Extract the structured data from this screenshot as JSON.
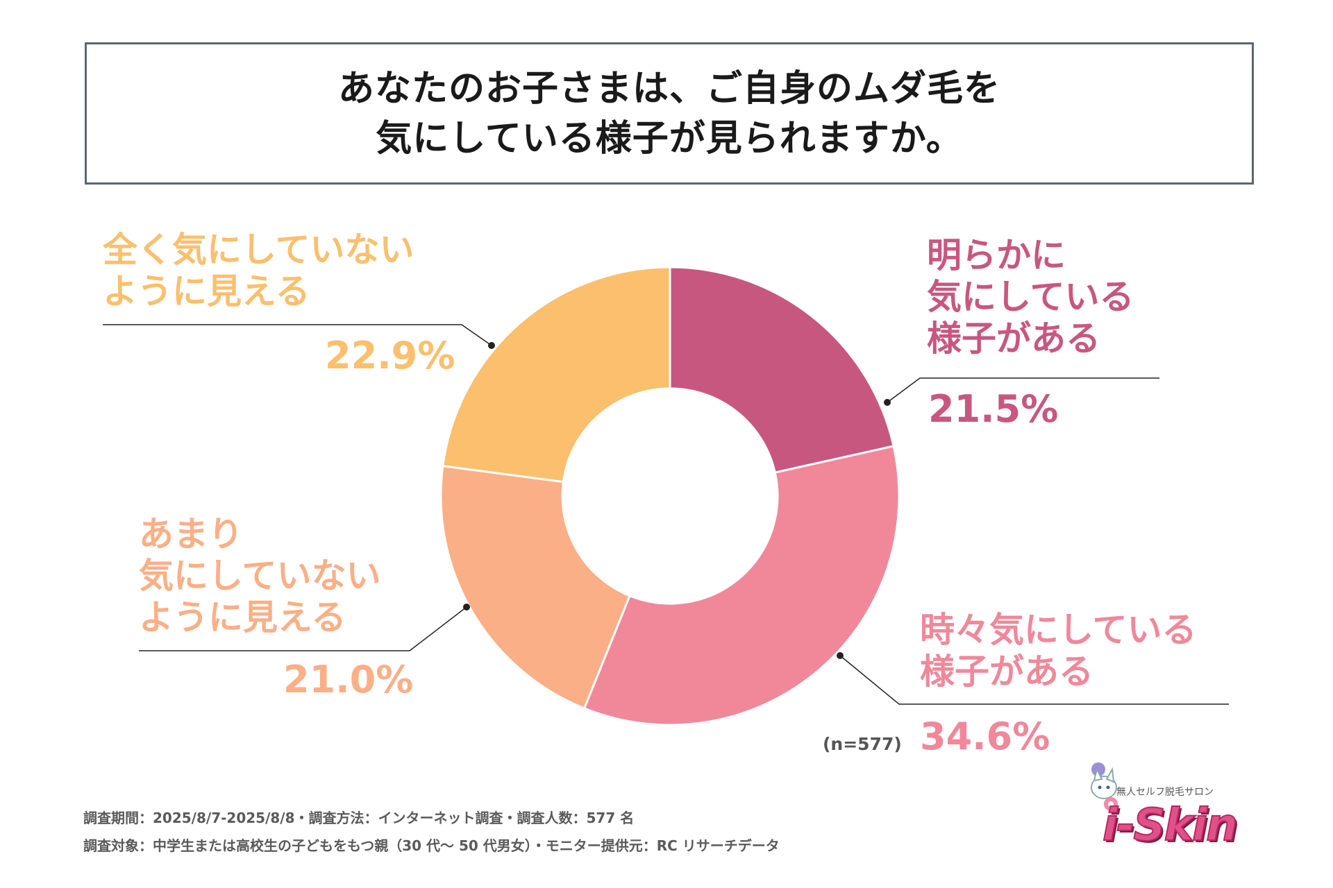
{
  "title": {
    "line1": "あなたのお子さまは、ご自身のムダ毛を",
    "line2": "気にしている様子が見られますか。"
  },
  "chart_data": {
    "type": "pie",
    "variant": "donut",
    "sample_size": "(n=577)",
    "slices": [
      {
        "label_lines": [
          "明らかに",
          "気にしている",
          "様子がある"
        ],
        "value": 21.5,
        "value_label": "21.5%",
        "color": "#c8577f"
      },
      {
        "label_lines": [
          "時々気にしている",
          "様子がある"
        ],
        "value": 34.6,
        "value_label": "34.6%",
        "color": "#f0889a"
      },
      {
        "label_lines": [
          "あまり",
          "気にしていない",
          "ように見える"
        ],
        "value": 21.0,
        "value_label": "21.0%",
        "color": "#fbaf86"
      },
      {
        "label_lines": [
          "全く気にしていない",
          "ように見える"
        ],
        "value": 22.9,
        "value_label": "22.9%",
        "color": "#fbbf6d"
      }
    ]
  },
  "footer": {
    "line1": "調査期間：2025/8/7-2025/8/8・調査方法：インターネット調査・調査人数：577 名",
    "line2": "調査対象：中学生または高校生の子どもをもつ親（30 代〜 50 代男女）・モニター提供元：RC リサーチデータ"
  },
  "logo": {
    "tagline": "無人セルフ脱毛サロン",
    "wordmark": "i-Skin",
    "colors": {
      "primary": "#e2508a",
      "dark": "#7c1d45"
    },
    "icon": "cat-mascot-icon"
  }
}
